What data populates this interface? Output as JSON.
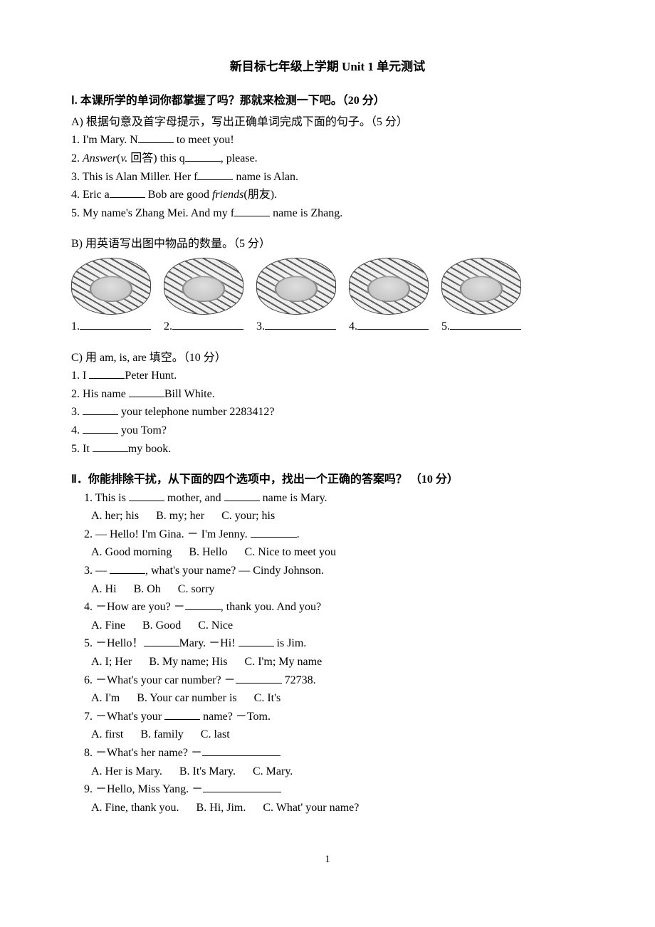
{
  "title": "新目标七年级上学期 Unit 1 单元测试",
  "section1": {
    "header": "Ⅰ. 本课所学的单词你都掌握了吗？那就来检测一下吧。（20 分）",
    "partA": {
      "header": "A)  根据句意及首字母提示，写出正确单词完成下面的句子。（5 分）",
      "q1a": "1. I'm Mary. N",
      "q1b": " to meet you!",
      "q2a_pre": "2. ",
      "q2a_it": "Answer",
      "q2a_post": "(",
      "q2a_it2": "v.",
      "q2a_post2": "  回答) this q",
      "q2b": ", please.",
      "q3a": "3. This is Alan Miller. Her f",
      "q3b": " name is Alan.",
      "q4a": "4. Eric a",
      "q4b_pre": " Bob are good ",
      "q4b_it": "friends",
      "q4b_post": "(朋友).",
      "q5a": "5. My name's Zhang Mei. And my f",
      "q5b": " name is Zhang."
    },
    "partB": {
      "header": "B)  用英语写出图中物品的数量。（5 分）",
      "nums": [
        "1. ",
        "2. ",
        "3. ",
        "4. ",
        "5. "
      ]
    },
    "partC": {
      "header": "C)  用 am, is, are 填空。（10 分）",
      "q1a": "1. I ",
      "q1b": "Peter Hunt.",
      "q2a": "2. His name ",
      "q2b": "Bill White.",
      "q3a": "3. ",
      "q3b": " your telephone number 2283412?",
      "q4a": "4. ",
      "q4b": " you Tom?",
      "q5a": "5. It ",
      "q5b": "my book."
    }
  },
  "section2": {
    "header": "Ⅱ．你能排除干扰，从下面的四个选项中，找出一个正确的答案吗？ （10 分）",
    "q1": {
      "t1": "1. This is ",
      "t2": "  mother, and ",
      "t3": "  name is Mary.",
      "a": "A. her; his",
      "b": "B. my; her",
      "c": "C. your; his"
    },
    "q2": {
      "t1": "2. — Hello! I'm Gina. － I'm Jenny. ",
      "t2": ".",
      "a": "A. Good morning",
      "b": "B. Hello",
      "c": "C. Nice to meet you"
    },
    "q3": {
      "t1": "3. — ",
      "t2": ", what's your name? — Cindy Johnson.",
      "a": "A. Hi",
      "b": "B. Oh",
      "c": "C. sorry"
    },
    "q4": {
      "t1": "4. －How are you?  －",
      "t2": ", thank you. And you?",
      "a": "A. Fine",
      "b": "B. Good",
      "c": "C. Nice"
    },
    "q5": {
      "t1": "5. －Hello！",
      "t2": "Mary. －Hi! ",
      "t3": " is Jim.",
      "a": "A. I; Her",
      "b": "B. My name; His",
      "c": "C. I'm; My name"
    },
    "q6": {
      "t1": "6.  －What's your car number?  －",
      "t2": " 72738.",
      "a": "A. I'm",
      "b": "B. Your car number is",
      "c": "C. It's"
    },
    "q7": {
      "t1": "7.  －What's your ",
      "t2": " name?  －Tom.",
      "a": "A. first",
      "b": "B. family",
      "c": "C. last"
    },
    "q8": {
      "t1": "8.  －What's her name?  －",
      "a": "A. Her is Mary.",
      "b": "B. It's Mary.",
      "c": "C. Mary."
    },
    "q9": {
      "t1": "9.  －Hello, Miss Yang.  －",
      "a": "A. Fine, thank you.",
      "b": "B. Hi, Jim.",
      "c": "C. What' your name?"
    }
  },
  "page_number": "1"
}
